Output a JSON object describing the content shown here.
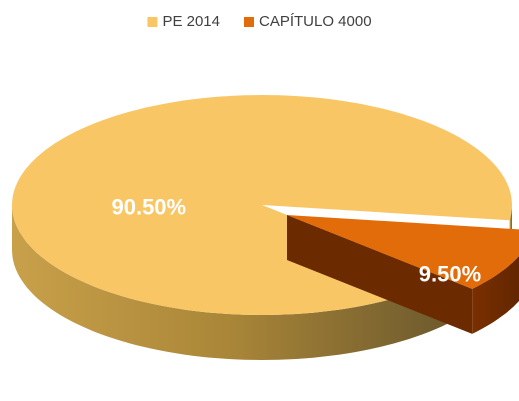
{
  "chart_data": {
    "type": "pie",
    "categories": [
      "PE 2014",
      "CAPÍTULO 4000"
    ],
    "values": [
      90.5,
      9.5
    ],
    "value_labels": [
      "90.50%",
      "9.50%"
    ],
    "colors": [
      "#f9c666",
      "#e36c0a"
    ],
    "legend": "top"
  }
}
